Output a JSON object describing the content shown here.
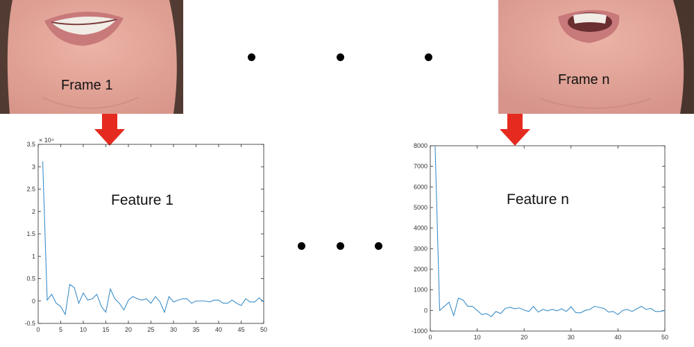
{
  "frames": [
    {
      "label": "Frame 1"
    },
    {
      "label": "Frame n"
    }
  ],
  "colors": {
    "arrow": "#e52b1f",
    "series": "#3b8ec8",
    "skin": "#e6a79b",
    "lips": "#c8797a",
    "teeth": "#f1ece6",
    "hair": "#3a2a22"
  },
  "chart_data": [
    {
      "type": "line",
      "annotation": "Feature 1",
      "exponent_label": "× 10⁴",
      "x_ticks": [
        0,
        5,
        10,
        15,
        20,
        25,
        30,
        35,
        40,
        45,
        50
      ],
      "y_ticks": [
        -0.5,
        0,
        0.5,
        1,
        1.5,
        2,
        2.5,
        3,
        3.5
      ],
      "y_tick_labels": [
        "-0.5",
        "0",
        "0.5",
        "1",
        "1.5",
        "2",
        "2.5",
        "3",
        "3.5"
      ],
      "xlim": [
        0,
        50
      ],
      "ylim": [
        -0.5,
        3.5
      ],
      "grid": false,
      "x": [
        1,
        2,
        3,
        4,
        5,
        6,
        7,
        8,
        9,
        10,
        11,
        12,
        13,
        14,
        15,
        16,
        17,
        18,
        19,
        20,
        21,
        22,
        23,
        24,
        25,
        26,
        27,
        28,
        29,
        30,
        31,
        32,
        33,
        34,
        35,
        36,
        37,
        38,
        39,
        40,
        41,
        42,
        43,
        44,
        45,
        46,
        47,
        48,
        49,
        50
      ],
      "y": [
        3.12,
        0.02,
        0.15,
        -0.05,
        -0.12,
        -0.3,
        0.37,
        0.3,
        -0.05,
        0.18,
        0.02,
        0.05,
        0.15,
        -0.12,
        -0.25,
        0.27,
        0.05,
        -0.05,
        -0.2,
        0.02,
        0.1,
        0.05,
        0.02,
        0.05,
        -0.05,
        0.1,
        -0.02,
        -0.25,
        0.1,
        -0.02,
        0.02,
        0.05,
        0.05,
        -0.05,
        0.0,
        0.0,
        0.0,
        -0.02,
        0.02,
        0.02,
        -0.05,
        -0.05,
        0.02,
        -0.05,
        -0.1,
        0.05,
        -0.02,
        -0.02,
        0.07,
        -0.02
      ]
    },
    {
      "type": "line",
      "annotation": "Feature n",
      "x_ticks": [
        0,
        10,
        20,
        30,
        40,
        50
      ],
      "y_ticks": [
        -1000,
        0,
        1000,
        2000,
        3000,
        4000,
        5000,
        6000,
        7000,
        8000
      ],
      "y_tick_labels": [
        "-1000",
        "0",
        "1000",
        "2000",
        "3000",
        "4000",
        "5000",
        "6000",
        "7000",
        "8000"
      ],
      "xlim": [
        0,
        50
      ],
      "ylim": [
        -1000,
        8000
      ],
      "grid": false,
      "x": [
        1,
        2,
        3,
        4,
        5,
        6,
        7,
        8,
        9,
        10,
        11,
        12,
        13,
        14,
        15,
        16,
        17,
        18,
        19,
        20,
        21,
        22,
        23,
        24,
        25,
        26,
        27,
        28,
        29,
        30,
        31,
        32,
        33,
        34,
        35,
        36,
        37,
        38,
        39,
        40,
        41,
        42,
        43,
        44,
        45,
        46,
        47,
        48,
        49,
        50
      ],
      "y": [
        8200,
        0,
        200,
        400,
        -250,
        600,
        500,
        200,
        200,
        0,
        -200,
        -150,
        -300,
        -50,
        -150,
        100,
        150,
        80,
        120,
        20,
        -50,
        200,
        -80,
        50,
        -20,
        50,
        -20,
        80,
        -50,
        180,
        -100,
        -120,
        0,
        50,
        200,
        150,
        100,
        -80,
        -50,
        -200,
        0,
        50,
        -50,
        80,
        200,
        50,
        100,
        -50,
        -50,
        0
      ]
    }
  ]
}
